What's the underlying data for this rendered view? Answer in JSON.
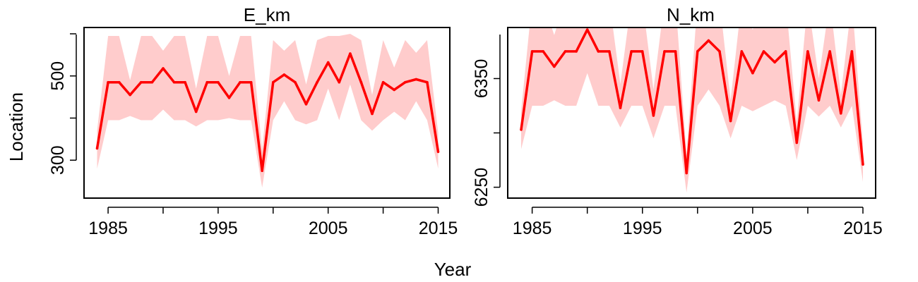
{
  "figure": {
    "ylabel": "Location",
    "xlabel": "Year"
  },
  "colors": {
    "line": "#ff0000",
    "band": "#ffcccc",
    "axis": "#000000"
  },
  "chart_data": [
    {
      "type": "line",
      "title": "E_km",
      "xlabel": "Year",
      "ylabel": "Location",
      "xlim": [
        1984,
        2015
      ],
      "ylim": [
        210,
        615
      ],
      "xticks": [
        1985,
        1990,
        1995,
        2000,
        2005,
        2010,
        2015
      ],
      "xtick_labels": [
        "1985",
        "",
        "1995",
        "",
        "2005",
        "",
        "2015"
      ],
      "yticks": [
        300,
        400,
        500,
        600
      ],
      "ytick_labels": [
        "300",
        "",
        "500",
        ""
      ],
      "x": [
        1984,
        1985,
        1986,
        1987,
        1988,
        1989,
        1990,
        1991,
        1992,
        1993,
        1994,
        1995,
        1996,
        1997,
        1998,
        1999,
        2000,
        2001,
        2002,
        2003,
        2004,
        2005,
        2006,
        2007,
        2008,
        2009,
        2010,
        2011,
        2012,
        2013,
        2014,
        2015
      ],
      "series": [
        {
          "values": [
            328,
            485,
            485,
            455,
            485,
            485,
            518,
            485,
            485,
            415,
            485,
            485,
            448,
            485,
            485,
            275,
            485,
            503,
            485,
            433,
            485,
            532,
            485,
            553,
            485,
            410,
            485,
            467,
            485,
            492,
            485,
            320
          ],
          "lower": [
            280,
            395,
            395,
            405,
            395,
            395,
            420,
            395,
            395,
            380,
            395,
            395,
            400,
            395,
            395,
            235,
            395,
            440,
            395,
            385,
            395,
            470,
            395,
            480,
            395,
            370,
            395,
            415,
            395,
            440,
            395,
            280
          ],
          "upper": [
            370,
            595,
            595,
            490,
            595,
            595,
            560,
            595,
            595,
            470,
            595,
            595,
            500,
            595,
            595,
            325,
            585,
            560,
            585,
            480,
            585,
            595,
            595,
            600,
            585,
            455,
            585,
            520,
            585,
            555,
            585,
            365
          ]
        }
      ]
    },
    {
      "type": "line",
      "title": "N_km",
      "xlabel": "Year",
      "ylabel": "",
      "xlim": [
        1984,
        2015
      ],
      "ylim": [
        6240,
        6397
      ],
      "xticks": [
        1985,
        1990,
        1995,
        2000,
        2005,
        2010,
        2015
      ],
      "xtick_labels": [
        "1985",
        "",
        "1995",
        "",
        "2005",
        "",
        "2015"
      ],
      "yticks": [
        6250,
        6300,
        6350,
        6400
      ],
      "ytick_labels": [
        "6250",
        "",
        "6350",
        ""
      ],
      "x": [
        1984,
        1985,
        1986,
        1987,
        1988,
        1989,
        1990,
        1991,
        1992,
        1993,
        1994,
        1995,
        1996,
        1997,
        1998,
        1999,
        2000,
        2001,
        2002,
        2003,
        2004,
        2005,
        2006,
        2007,
        2008,
        2009,
        2010,
        2011,
        2012,
        2013,
        2014,
        2015
      ],
      "series": [
        {
          "values": [
            6303,
            6375,
            6375,
            6361,
            6375,
            6375,
            6395,
            6375,
            6375,
            6323,
            6375,
            6375,
            6316,
            6375,
            6375,
            6263,
            6375,
            6385,
            6375,
            6311,
            6375,
            6355,
            6375,
            6365,
            6375,
            6291,
            6375,
            6330,
            6375,
            6318,
            6375,
            6271
          ],
          "lower": [
            6285,
            6325,
            6325,
            6330,
            6325,
            6325,
            6355,
            6325,
            6325,
            6305,
            6325,
            6325,
            6295,
            6325,
            6325,
            6245,
            6325,
            6340,
            6325,
            6295,
            6325,
            6320,
            6325,
            6330,
            6325,
            6275,
            6325,
            6315,
            6325,
            6305,
            6325,
            6255
          ],
          "upper": [
            6320,
            6422,
            6422,
            6390,
            6422,
            6422,
            6430,
            6422,
            6422,
            6345,
            6422,
            6422,
            6340,
            6422,
            6422,
            6280,
            6422,
            6420,
            6422,
            6330,
            6422,
            6395,
            6422,
            6400,
            6422,
            6310,
            6422,
            6350,
            6422,
            6335,
            6422,
            6290
          ]
        }
      ]
    }
  ]
}
